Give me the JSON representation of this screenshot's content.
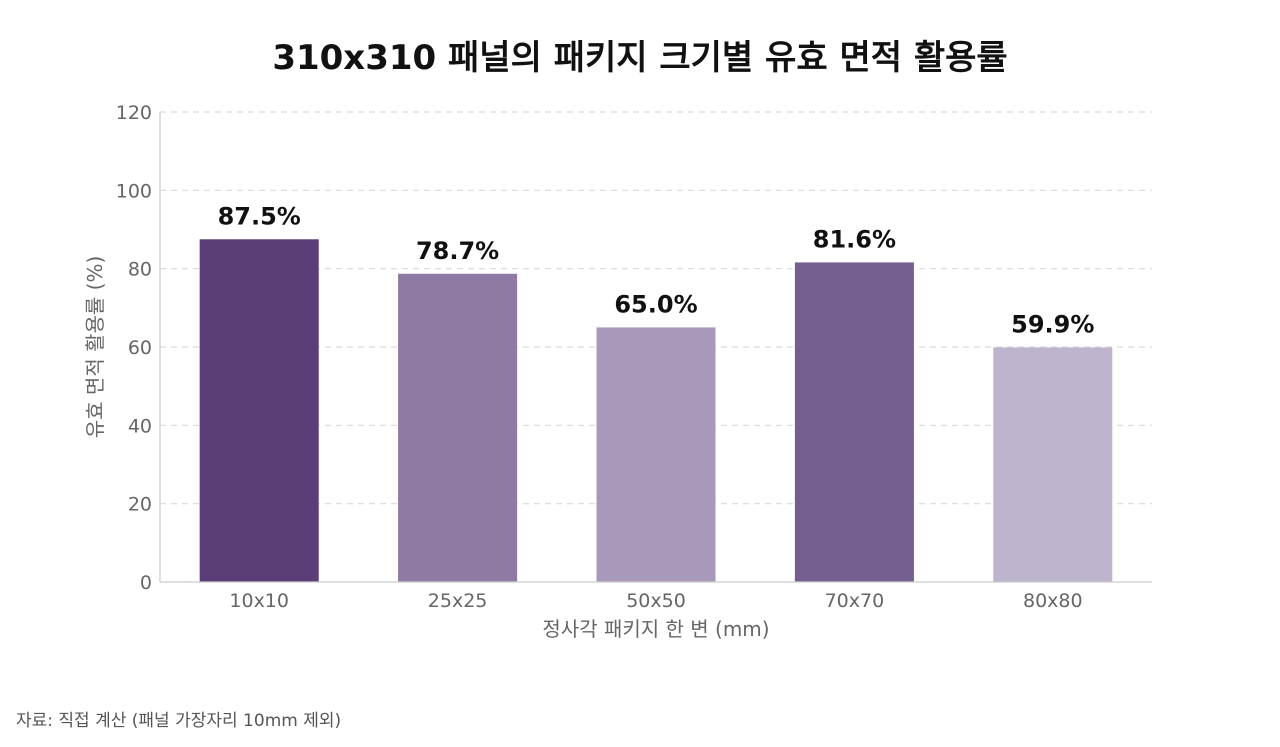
{
  "chart_data": {
    "type": "bar",
    "title": "310x310 패널의 패키지 크기별 유효 면적 활용률",
    "xlabel": "정사각 패키지 한 변 (mm)",
    "ylabel": "유효 면적 활용률 (%)",
    "categories": [
      "10x10",
      "25x25",
      "50x50",
      "70x70",
      "80x80"
    ],
    "values": [
      87.5,
      78.7,
      65.0,
      81.6,
      59.9
    ],
    "value_labels": [
      "87.5%",
      "78.7%",
      "65.0%",
      "81.6%",
      "59.9%"
    ],
    "bar_colors": [
      "#5b3d78",
      "#8e7aa2",
      "#a899ba",
      "#755e90",
      "#bfb4cd"
    ],
    "ylim": [
      0,
      120
    ],
    "yticks": [
      0,
      20,
      40,
      60,
      80,
      100,
      120
    ],
    "grid": true,
    "legend": false
  },
  "footer": {
    "source_note": "자료: 직접 계산 (패널 가장자리 10mm 제외)"
  }
}
